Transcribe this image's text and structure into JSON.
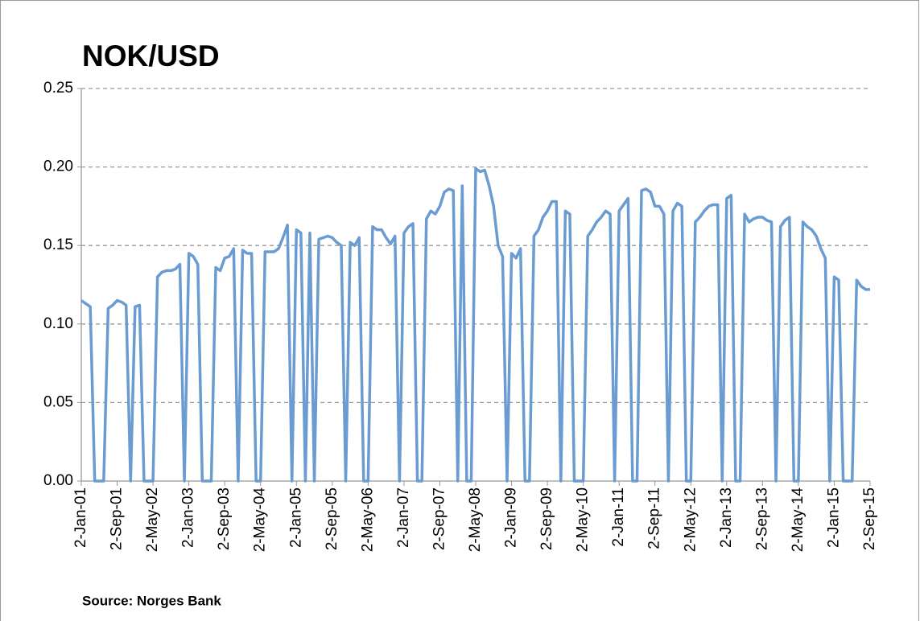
{
  "chart_data": {
    "type": "line",
    "title": "NOK/USD",
    "source": "Source: Norges Bank",
    "categories": [
      "2-Jan-01",
      null,
      null,
      null,
      null,
      null,
      null,
      null,
      "2-Sep-01",
      null,
      null,
      null,
      null,
      null,
      null,
      null,
      "2-May-02",
      null,
      null,
      null,
      null,
      null,
      null,
      null,
      "2-Jan-03",
      null,
      null,
      null,
      null,
      null,
      null,
      null,
      "2-Sep-03",
      null,
      null,
      null,
      null,
      null,
      null,
      null,
      "2-May-04",
      null,
      null,
      null,
      null,
      null,
      null,
      null,
      "2-Jan-05",
      null,
      null,
      null,
      null,
      null,
      null,
      null,
      "2-Sep-05",
      null,
      null,
      null,
      null,
      null,
      null,
      null,
      "2-May-06",
      null,
      null,
      null,
      null,
      null,
      null,
      null,
      "2-Jan-07",
      null,
      null,
      null,
      null,
      null,
      null,
      null,
      "2-Sep-07",
      null,
      null,
      null,
      null,
      null,
      null,
      null,
      "2-May-08",
      null,
      null,
      null,
      null,
      null,
      null,
      null,
      "2-Jan-09",
      null,
      null,
      null,
      null,
      null,
      null,
      null,
      "2-Sep-09",
      null,
      null,
      null,
      null,
      null,
      null,
      null,
      "2-May-10",
      null,
      null,
      null,
      null,
      null,
      null,
      null,
      "2-Jan-11",
      null,
      null,
      null,
      null,
      null,
      null,
      null,
      "2-Sep-11",
      null,
      null,
      null,
      null,
      null,
      null,
      null,
      "2-May-12",
      null,
      null,
      null,
      null,
      null,
      null,
      null,
      "2-Jan-13",
      null,
      null,
      null,
      null,
      null,
      null,
      null,
      "2-Sep-13",
      null,
      null,
      null,
      null,
      null,
      null,
      null,
      "2-May-14",
      null,
      null,
      null,
      null,
      null,
      null,
      null,
      "2-Jan-15",
      null,
      null,
      null,
      null,
      null,
      null,
      null,
      "2-Sep-15"
    ],
    "series": [
      {
        "color": "#6a9bd1",
        "values": [
          0.115,
          0.113,
          0.111,
          0,
          0,
          0,
          0.11,
          0.112,
          0.115,
          0.114,
          0.112,
          0,
          0.111,
          0.112,
          0,
          0,
          0,
          0.13,
          0.133,
          0.134,
          0.134,
          0.135,
          0.138,
          0,
          0.145,
          0.143,
          0.138,
          0,
          0,
          0,
          0.136,
          0.134,
          0.142,
          0.143,
          0.148,
          0,
          0.147,
          0.145,
          0.145,
          0,
          0,
          0.146,
          0.146,
          0.146,
          0.148,
          0.155,
          0.163,
          0,
          0.16,
          0.158,
          0,
          0.158,
          0,
          0.154,
          0.155,
          0.156,
          0.155,
          0.152,
          0.15,
          0,
          0.152,
          0.15,
          0.155,
          0,
          0,
          0.162,
          0.16,
          0.16,
          0.155,
          0.151,
          0.156,
          0,
          0.158,
          0.162,
          0.164,
          0,
          0,
          0.167,
          0.172,
          0.17,
          0.175,
          0.184,
          0.186,
          0.185,
          0,
          0.188,
          0,
          0,
          0.199,
          0.197,
          0.198,
          0.188,
          0.175,
          0.15,
          0.143,
          0,
          0.145,
          0.142,
          0.148,
          0,
          0,
          0.156,
          0.16,
          0.168,
          0.172,
          0.178,
          0.178,
          0,
          0.172,
          0.17,
          0,
          0,
          0,
          0.156,
          0.16,
          0.165,
          0.168,
          0.172,
          0.17,
          0,
          0.172,
          0.176,
          0.18,
          0,
          0,
          0.185,
          0.186,
          0.184,
          0.175,
          0.175,
          0.17,
          0,
          0.172,
          0.177,
          0.175,
          0,
          0,
          0.165,
          0.168,
          0.172,
          0.175,
          0.176,
          0.176,
          0,
          0.18,
          0.182,
          0,
          0,
          0.17,
          0.165,
          0.167,
          0.168,
          0.168,
          0.166,
          0.165,
          0,
          0.162,
          0.166,
          0.168,
          0,
          0,
          0.165,
          0.162,
          0.16,
          0.156,
          0.148,
          0.142,
          0,
          0.13,
          0.128,
          0,
          0,
          0,
          0.128,
          0.124,
          0.122,
          0.122
        ]
      }
    ],
    "ylim": [
      0,
      0.25
    ],
    "yticks": [
      {
        "value": 0,
        "label": "0.00"
      },
      {
        "value": 0.05,
        "label": "0.05"
      },
      {
        "value": 0.1,
        "label": "0.10"
      },
      {
        "value": 0.15,
        "label": "0.15"
      },
      {
        "value": 0.2,
        "label": "0.20"
      },
      {
        "value": 0.25,
        "label": "0.25"
      }
    ],
    "grid": true
  }
}
